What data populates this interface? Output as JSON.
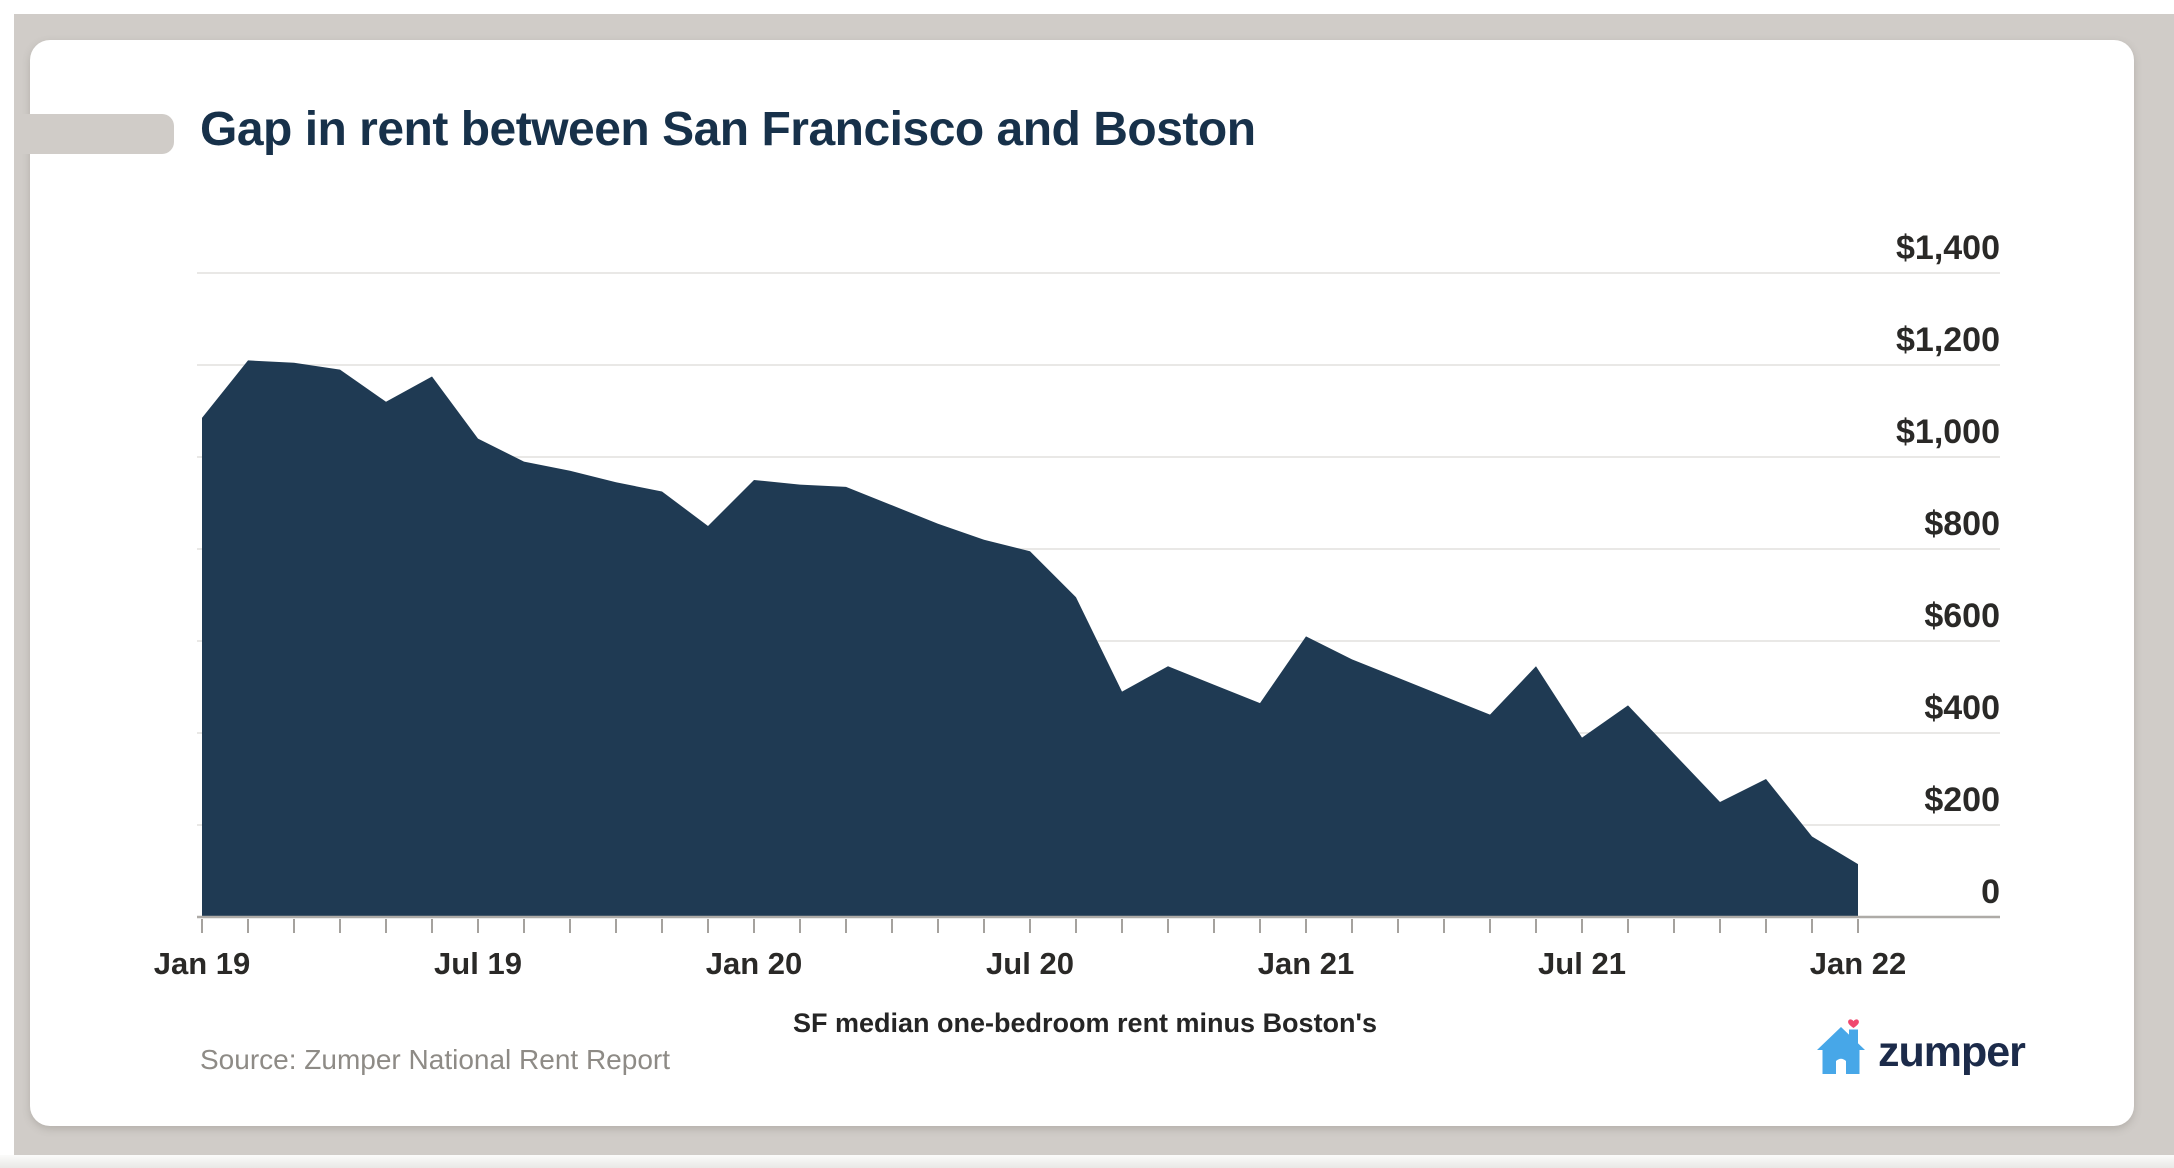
{
  "page": {
    "title": "Gap in rent between San Francisco and Boston",
    "caption": "SF median one-bedroom rent minus Boston's",
    "source": "Source: Zumper National Rent Report",
    "logo_text": "zumper"
  },
  "colors": {
    "area_fill": "#1f3a53",
    "title_navy": "#17314a",
    "background_gray": "#d0ccc8",
    "gridline": "#e9e8e6",
    "axis_line": "#aeaba7",
    "tick": "#a5a29e",
    "axis_label": "#2a2927",
    "source_text": "#8e8b86",
    "logo_blue": "#47a7e8",
    "logo_heart": "#f0486e",
    "logo_navy": "#1c2b4a"
  },
  "chart_data": {
    "type": "area",
    "title": "Gap in rent between San Francisco and Boston",
    "xlabel": "SF median one-bedroom rent minus Boston's",
    "ylabel": "",
    "x": [
      "Jan 19",
      "Feb 19",
      "Mar 19",
      "Apr 19",
      "May 19",
      "Jun 19",
      "Jul 19",
      "Aug 19",
      "Sep 19",
      "Oct 19",
      "Nov 19",
      "Dec 19",
      "Jan 20",
      "Feb 20",
      "Mar 20",
      "Apr 20",
      "May 20",
      "Jun 20",
      "Jul 20",
      "Aug 20",
      "Sep 20",
      "Oct 20",
      "Nov 20",
      "Dec 20",
      "Jan 21",
      "Feb 21",
      "Mar 21",
      "Apr 21",
      "May 21",
      "Jun 21",
      "Jul 21",
      "Aug 21",
      "Sep 21",
      "Oct 21",
      "Nov 21",
      "Dec 21",
      "Jan 22"
    ],
    "values": [
      1085,
      1210,
      1205,
      1190,
      1120,
      1175,
      1040,
      990,
      970,
      945,
      925,
      850,
      950,
      940,
      935,
      895,
      855,
      820,
      795,
      695,
      490,
      545,
      505,
      465,
      610,
      560,
      520,
      480,
      440,
      545,
      390,
      460,
      355,
      250,
      300,
      175,
      115
    ],
    "x_axis_tick_labels": [
      "Jan 19",
      "Jul 19",
      "Jan 20",
      "Jul 20",
      "Jan 21",
      "Jul 21",
      "Jan 22"
    ],
    "y_axis_tick_labels": [
      "$1,400",
      "$1,200",
      "$1,000",
      "$800",
      "$600",
      "$400",
      "$200",
      "0"
    ],
    "y_tick_values": [
      1400,
      1200,
      1000,
      800,
      600,
      400,
      200,
      0
    ],
    "ylim": [
      0,
      1400
    ],
    "grid": "horizontal gridlines, labels on right",
    "legend": "none"
  }
}
